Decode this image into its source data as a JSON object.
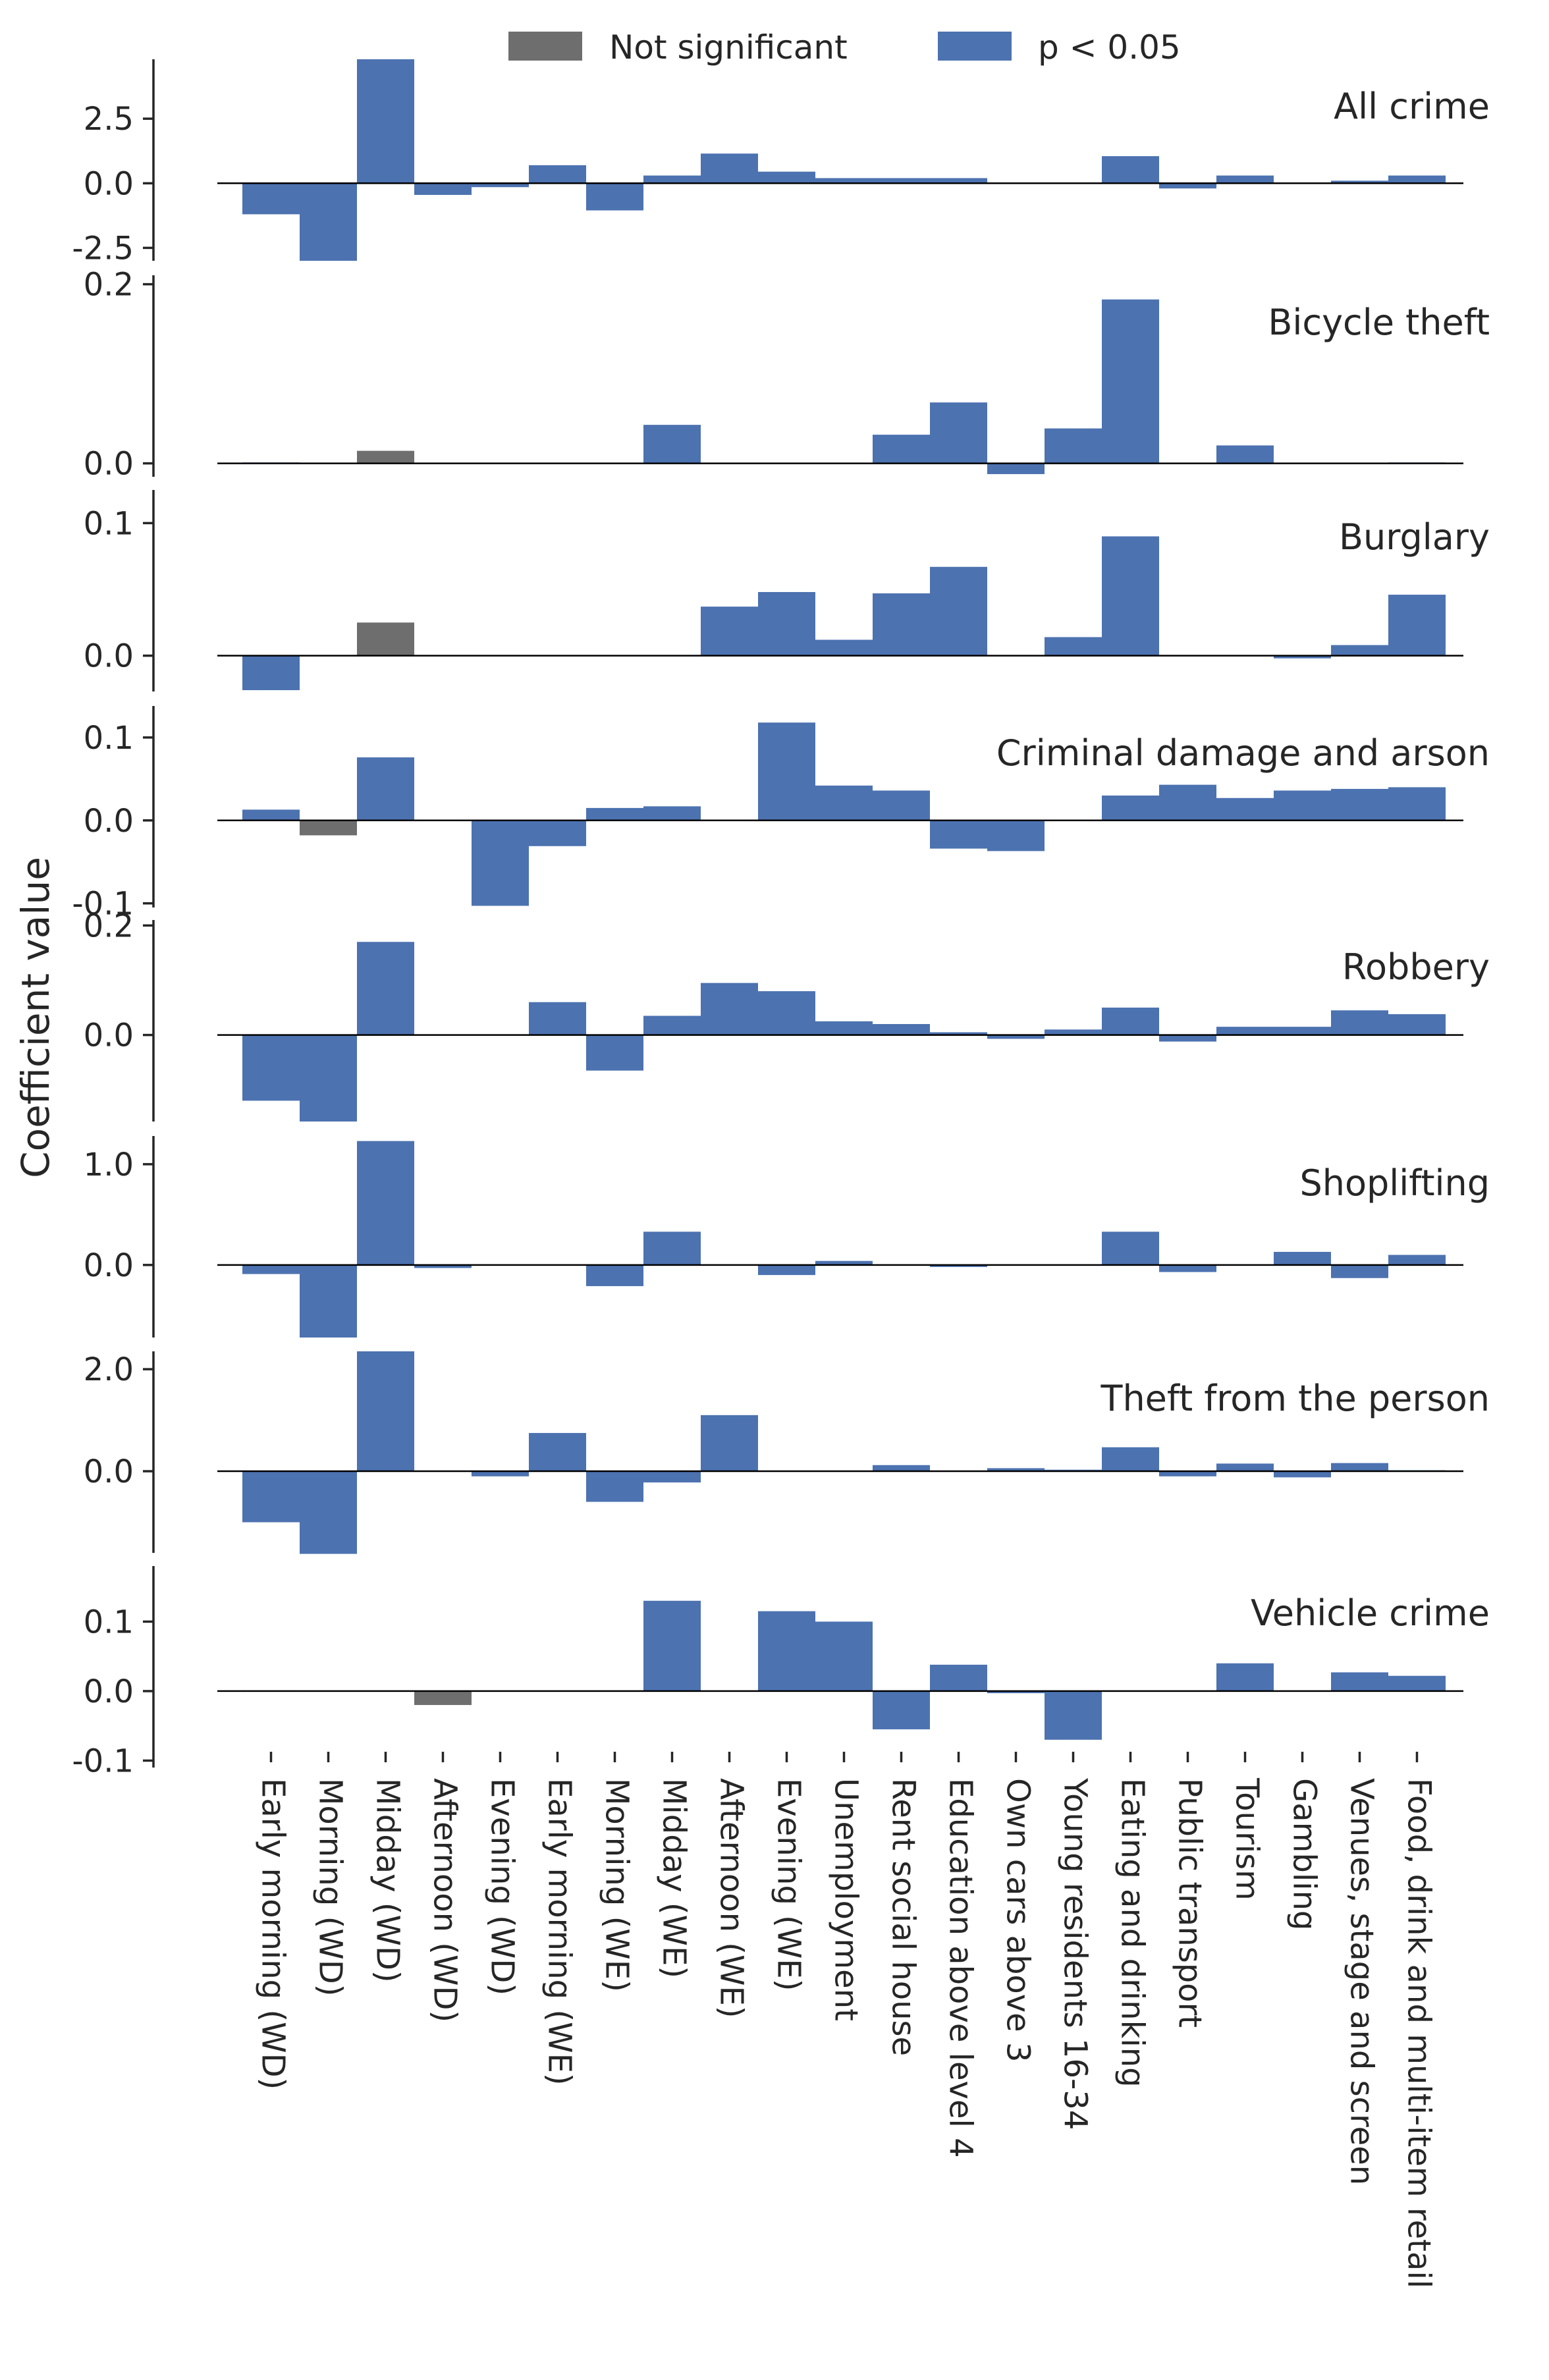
{
  "legend": {
    "placement": "top-center",
    "entries": [
      {
        "label": "Not significant",
        "color": "#6e6e6e"
      },
      {
        "label": "p < 0.05",
        "color": "#4c72b0"
      }
    ]
  },
  "ylabel": "Coefficient value",
  "chart_data": {
    "type": "bar",
    "layout": "small-multiples-stacked-vertically",
    "colors": {
      "significant": "#4c72b0",
      "not_significant": "#6e6e6e"
    },
    "categories": [
      "Early morning (WD)",
      "Morning (WD)",
      "Midday (WD)",
      "Afternoon (WD)",
      "Evening (WD)",
      "Early morning (WE)",
      "Morning (WE)",
      "Midday (WE)",
      "Afternoon (WE)",
      "Evening (WE)",
      "Unemployment",
      "Rent social house",
      "Education above level 4",
      "Own cars above 3",
      "Young residents 16-34",
      "Eating and drinking",
      "Public transport",
      "Tourism",
      "Gambling",
      "Venues, stage and screen",
      "Food, drink and multi-item retail"
    ],
    "panels": [
      {
        "title": "All crime",
        "ylim": [
          -3.0,
          4.8
        ],
        "ticks": [
          {
            "v": -2.5,
            "label": "-2.5"
          },
          {
            "v": 0,
            "label": "0.0"
          },
          {
            "v": 2.5,
            "label": "2.5"
          }
        ],
        "values": [
          -1.2,
          -3.0,
          4.8,
          -0.45,
          -0.15,
          0.7,
          -1.05,
          0.3,
          1.15,
          0.45,
          0.2,
          0.2,
          0.2,
          0,
          0,
          1.05,
          -0.2,
          0.3,
          0,
          0.1,
          0.3
        ],
        "significant": [
          true,
          true,
          true,
          true,
          true,
          true,
          true,
          true,
          true,
          true,
          true,
          true,
          true,
          true,
          true,
          true,
          true,
          true,
          true,
          true,
          true
        ]
      },
      {
        "title": "Bicycle theft",
        "ylim": [
          -0.015,
          0.21
        ],
        "ticks": [
          {
            "v": 0,
            "label": "0.0"
          },
          {
            "v": 0.2,
            "label": "0.2"
          }
        ],
        "values": [
          0.001,
          0,
          0.014,
          0,
          0,
          0,
          0,
          0.043,
          0,
          0,
          0,
          0.032,
          0.068,
          -0.012,
          0.039,
          0.183,
          0,
          0.02,
          0,
          0,
          0.001
        ],
        "significant": [
          true,
          true,
          false,
          true,
          true,
          true,
          true,
          true,
          true,
          true,
          true,
          true,
          true,
          true,
          true,
          true,
          true,
          true,
          true,
          true,
          true
        ]
      },
      {
        "title": "Burglary",
        "ylim": [
          -0.027,
          0.125
        ],
        "ticks": [
          {
            "v": 0,
            "label": "0.0"
          },
          {
            "v": 0.1,
            "label": "0.1"
          }
        ],
        "values": [
          -0.026,
          0,
          0.025,
          0,
          0,
          0,
          0,
          0,
          0.037,
          0.048,
          0.012,
          0.047,
          0.067,
          0,
          0.014,
          0.09,
          0,
          0,
          -0.002,
          0.008,
          0.046
        ],
        "significant": [
          true,
          true,
          false,
          true,
          true,
          true,
          true,
          true,
          true,
          true,
          true,
          true,
          true,
          true,
          true,
          true,
          true,
          true,
          true,
          true,
          true
        ]
      },
      {
        "title": "Criminal damage and arson",
        "ylim": [
          -0.105,
          0.138
        ],
        "ticks": [
          {
            "v": -0.1,
            "label": "-0.1"
          },
          {
            "v": 0,
            "label": "0.0"
          },
          {
            "v": 0.1,
            "label": "0.1"
          }
        ],
        "values": [
          0.013,
          -0.018,
          0.076,
          0,
          -0.103,
          -0.031,
          0.015,
          0.017,
          0,
          0.118,
          0.042,
          0.036,
          -0.034,
          -0.037,
          0,
          0.03,
          0.043,
          0.027,
          0.036,
          0.038,
          0.04
        ],
        "significant": [
          true,
          false,
          true,
          true,
          true,
          true,
          true,
          true,
          true,
          true,
          true,
          true,
          true,
          true,
          true,
          true,
          true,
          true,
          true,
          true,
          true
        ]
      },
      {
        "title": "Robbery",
        "ylim": [
          -0.158,
          0.21
        ],
        "ticks": [
          {
            "v": 0,
            "label": "0.0"
          },
          {
            "v": 0.2,
            "label": "0.2"
          }
        ],
        "values": [
          -0.12,
          -0.158,
          0.17,
          0,
          0,
          0.06,
          -0.065,
          0.035,
          0.095,
          0.08,
          0.025,
          0.02,
          0.005,
          -0.007,
          0.01,
          0.05,
          -0.012,
          0.015,
          0.015,
          0.045,
          0.038
        ],
        "significant": [
          true,
          true,
          true,
          true,
          true,
          true,
          true,
          true,
          true,
          true,
          true,
          true,
          true,
          true,
          true,
          true,
          true,
          true,
          true,
          true,
          true
        ]
      },
      {
        "title": "Shoplifting",
        "ylim": [
          -0.72,
          1.28
        ],
        "ticks": [
          {
            "v": 0,
            "label": "0.0"
          },
          {
            "v": 1.0,
            "label": "1.0"
          }
        ],
        "values": [
          -0.09,
          -0.72,
          1.23,
          -0.03,
          0,
          0,
          -0.21,
          0.33,
          0,
          -0.1,
          0.04,
          0,
          -0.02,
          0,
          0,
          0.33,
          -0.07,
          0,
          0.13,
          -0.13,
          0.1
        ],
        "significant": [
          true,
          true,
          true,
          true,
          true,
          true,
          true,
          true,
          true,
          true,
          true,
          true,
          true,
          true,
          true,
          true,
          true,
          true,
          true,
          true,
          true
        ]
      },
      {
        "title": "Theft from the person",
        "ylim": [
          -1.6,
          2.35
        ],
        "ticks": [
          {
            "v": 0,
            "label": "0.0"
          },
          {
            "v": 2.0,
            "label": "2.0"
          }
        ],
        "values": [
          -1.0,
          -1.62,
          2.35,
          0,
          -0.1,
          0.75,
          -0.6,
          -0.22,
          1.1,
          0,
          0,
          0.12,
          0,
          0.06,
          0.03,
          0.47,
          -0.1,
          0.15,
          -0.12,
          0.16,
          0.02
        ],
        "significant": [
          true,
          true,
          true,
          true,
          true,
          true,
          true,
          true,
          true,
          true,
          true,
          true,
          true,
          true,
          true,
          true,
          true,
          true,
          true,
          true,
          true
        ]
      },
      {
        "title": "Vehicle crime",
        "ylim": [
          -0.11,
          0.18
        ],
        "ticks": [
          {
            "v": -0.1,
            "label": "-0.1"
          },
          {
            "v": 0,
            "label": "0.0"
          },
          {
            "v": 0.1,
            "label": "0.1"
          }
        ],
        "values": [
          0.001,
          0,
          0,
          -0.02,
          0,
          0,
          0,
          0.13,
          0,
          0.115,
          0.1,
          -0.055,
          0.038,
          -0.003,
          -0.07,
          0,
          0,
          0.04,
          0,
          0.027,
          0.022
        ],
        "significant": [
          true,
          true,
          true,
          false,
          true,
          true,
          true,
          true,
          true,
          true,
          true,
          true,
          true,
          true,
          true,
          true,
          true,
          true,
          true,
          true,
          true
        ]
      }
    ]
  }
}
